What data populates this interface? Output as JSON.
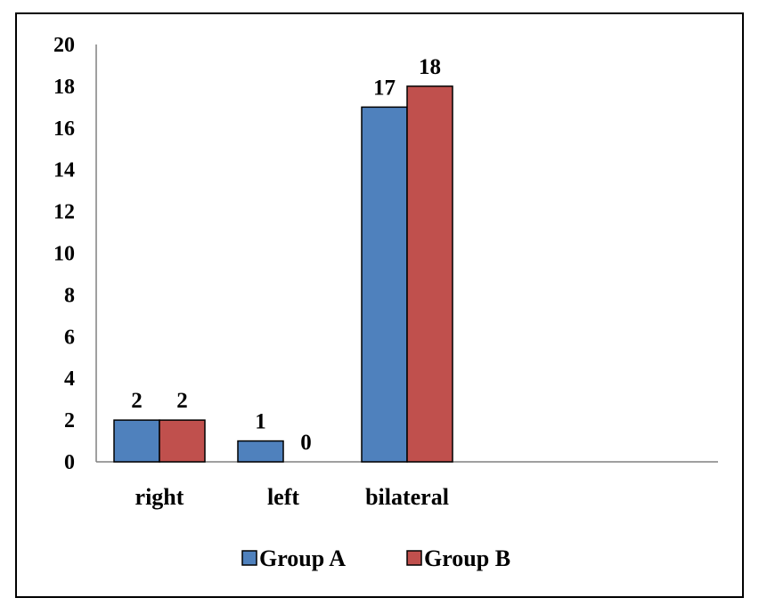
{
  "chart_data": {
    "type": "bar",
    "categories": [
      "right",
      "left",
      "bilateral"
    ],
    "series": [
      {
        "name": "Group A",
        "color": "#4F81BD",
        "values": [
          2,
          1,
          17
        ]
      },
      {
        "name": "Group B",
        "color": "#C0504D",
        "values": [
          2,
          0,
          18
        ]
      }
    ],
    "data_labels": [
      [
        "2",
        "1",
        "17"
      ],
      [
        "2",
        "0",
        "18"
      ]
    ],
    "yticks": [
      "0",
      "2",
      "4",
      "6",
      "8",
      "10",
      "12",
      "14",
      "16",
      "18",
      "20"
    ],
    "ylim": [
      0,
      20
    ],
    "grid": false,
    "legend_position": "bottom",
    "title": "",
    "xlabel": "",
    "ylabel": ""
  }
}
